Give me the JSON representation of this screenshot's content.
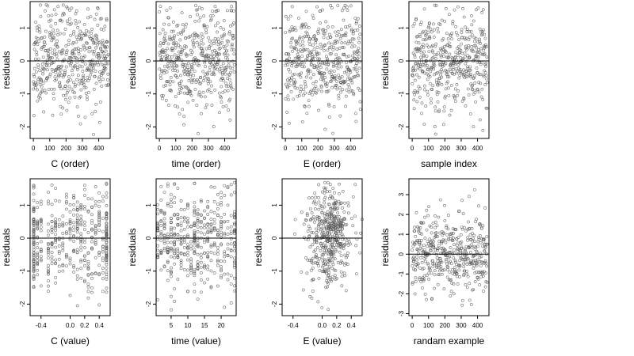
{
  "figure": {
    "background": "#ffffff",
    "point_color": "#555555",
    "line_color": "#000000"
  },
  "chart_data": [
    {
      "type": "scatter",
      "xlabel": "C (order)",
      "ylabel": "residuals",
      "xlim": [
        -20,
        470
      ],
      "ylim": [
        -2.35,
        1.8
      ],
      "xticks": [
        0,
        100,
        200,
        300,
        400
      ],
      "xtick_labels": [
        "0",
        "100",
        "200",
        "300",
        "400"
      ],
      "yticks": [
        -2,
        -1,
        0,
        1
      ],
      "ytick_labels": [
        "-2",
        "-1",
        "0",
        "1"
      ],
      "hline": 0,
      "n_points": 460,
      "x_kind": "order",
      "seed": 11,
      "spread": 0.75
    },
    {
      "type": "scatter",
      "xlabel": "time (order)",
      "ylabel": "residuals",
      "xlim": [
        -20,
        470
      ],
      "ylim": [
        -2.35,
        1.8
      ],
      "xticks": [
        0,
        100,
        200,
        300,
        400
      ],
      "xtick_labels": [
        "0",
        "100",
        "200",
        "300",
        "400"
      ],
      "yticks": [
        -2,
        -1,
        0,
        1
      ],
      "ytick_labels": [
        "-2",
        "-1",
        "0",
        "1"
      ],
      "hline": 0,
      "n_points": 460,
      "x_kind": "order",
      "seed": 23,
      "spread": 0.75
    },
    {
      "type": "scatter",
      "xlabel": "E (order)",
      "ylabel": "residuals",
      "xlim": [
        -20,
        470
      ],
      "ylim": [
        -2.35,
        1.8
      ],
      "xticks": [
        0,
        100,
        200,
        300,
        400
      ],
      "xtick_labels": [
        "0",
        "100",
        "200",
        "300",
        "400"
      ],
      "yticks": [
        -2,
        -1,
        0,
        1
      ],
      "ytick_labels": [
        "-2",
        "-1",
        "0",
        "1"
      ],
      "hline": 0,
      "n_points": 460,
      "x_kind": "order",
      "seed": 37,
      "spread": 0.75
    },
    {
      "type": "scatter",
      "xlabel": "sample index",
      "ylabel": "residuals",
      "xlim": [
        -20,
        470
      ],
      "ylim": [
        -2.35,
        1.8
      ],
      "xticks": [
        0,
        100,
        200,
        300,
        400
      ],
      "xtick_labels": [
        "0",
        "100",
        "200",
        "300",
        "400"
      ],
      "yticks": [
        -2,
        -1,
        0,
        1
      ],
      "ytick_labels": [
        "-2",
        "-1",
        "0",
        "1"
      ],
      "hline": 0,
      "n_points": 460,
      "x_kind": "order",
      "seed": 41,
      "spread": 0.75
    },
    {
      "type": "scatter",
      "xlabel": "C (value)",
      "ylabel": "residuals",
      "xlim": [
        -0.55,
        0.55
      ],
      "ylim": [
        -2.35,
        1.8
      ],
      "xticks": [
        -0.4,
        0.0,
        0.2,
        0.4
      ],
      "xtick_labels": [
        "-0.4",
        "0.0",
        "0.2",
        "0.4"
      ],
      "yticks": [
        -2,
        -1,
        0,
        1
      ],
      "ytick_labels": [
        "-2",
        "-1",
        "0",
        "1"
      ],
      "hline": 0,
      "n_points": 460,
      "x_kind": "discrete",
      "x_levels": [
        -0.5,
        -0.5,
        -0.5,
        -0.45,
        -0.4,
        -0.3,
        -0.25,
        -0.2,
        -0.15,
        -0.1,
        -0.05,
        0.0,
        0.05,
        0.1,
        0.15,
        0.2,
        0.25,
        0.3,
        0.35,
        0.4,
        0.45,
        0.5,
        0.5,
        0.5
      ],
      "seed": 53,
      "spread": 0.75
    },
    {
      "type": "scatter",
      "xlabel": "time (value)",
      "ylabel": "residuals",
      "xlim": [
        0.5,
        24.5
      ],
      "ylim": [
        -2.35,
        1.8
      ],
      "xticks": [
        5,
        10,
        15,
        20
      ],
      "xtick_labels": [
        "5",
        "10",
        "15",
        "20"
      ],
      "yticks": [
        -2,
        -1,
        0,
        1
      ],
      "ytick_labels": [
        "-2",
        "-1",
        "0",
        "1"
      ],
      "hline": 0,
      "n_points": 460,
      "x_kind": "discrete",
      "x_levels": [
        1,
        2,
        3,
        4,
        5,
        6,
        7,
        8,
        9,
        10,
        11,
        12,
        12,
        13,
        14,
        15,
        16,
        17,
        18,
        19,
        20,
        21,
        22,
        23,
        24
      ],
      "seed": 67,
      "spread": 0.75
    },
    {
      "type": "scatter",
      "xlabel": "E (value)",
      "ylabel": "residuals",
      "xlim": [
        -0.55,
        0.55
      ],
      "ylim": [
        -2.35,
        1.8
      ],
      "xticks": [
        -0.4,
        0.0,
        0.2,
        0.4
      ],
      "xtick_labels": [
        "-0.4",
        "0.0",
        "0.2",
        "0.4"
      ],
      "yticks": [
        -2,
        -1,
        0,
        1
      ],
      "ytick_labels": [
        "-2",
        "-1",
        "0",
        "1"
      ],
      "hline": 0,
      "n_points": 460,
      "x_kind": "continuous",
      "x_mean": 0.1,
      "x_sd": 0.16,
      "seed": 79,
      "spread": 0.75
    },
    {
      "type": "scatter",
      "xlabel": "randam example",
      "ylabel": "residuals",
      "xlim": [
        -20,
        470
      ],
      "ylim": [
        -3.1,
        3.8
      ],
      "xticks": [
        0,
        100,
        200,
        300,
        400
      ],
      "xtick_labels": [
        "0",
        "100",
        "200",
        "300",
        "400"
      ],
      "yticks": [
        -3,
        -2,
        -1,
        0,
        1,
        2,
        3
      ],
      "ytick_labels": [
        "-3",
        "-2",
        "-1",
        "0",
        "1",
        "2",
        "3"
      ],
      "hline": 0,
      "n_points": 460,
      "x_kind": "order",
      "seed": 97,
      "spread": 1.0
    }
  ]
}
